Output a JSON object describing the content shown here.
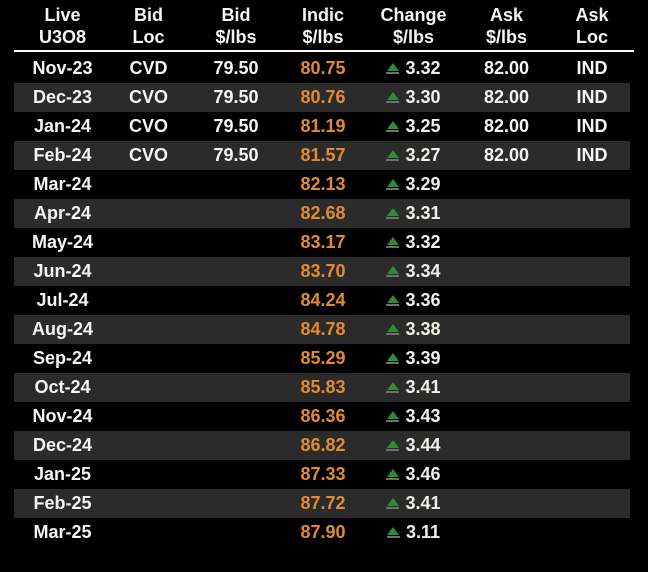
{
  "colors": {
    "background": "#000000",
    "row_alt": "#2B2B2B",
    "text": "#F5F5F5",
    "divider": "#FFFFFF",
    "indic": "#E08B33",
    "change_text": "#F1EFE7",
    "up_triangle_green": "#2E8B3C",
    "up_triangle_base": "#6F6F6F"
  },
  "icons": {
    "change_up": "up-triangle-icon"
  },
  "chart_data": {
    "type": "table",
    "title": "",
    "columns": [
      {
        "line1": "Live",
        "line2": "U3O8"
      },
      {
        "line1": "Bid",
        "line2": "Loc"
      },
      {
        "line1": "Bid",
        "line2": "$/lbs"
      },
      {
        "line1": "Indic",
        "line2": "$/lbs"
      },
      {
        "line1": "Change",
        "line2": "$/lbs"
      },
      {
        "line1": "Ask",
        "line2": "$/lbs"
      },
      {
        "line1": "Ask",
        "line2": "Loc"
      }
    ],
    "rows": [
      {
        "month": "Nov-23",
        "bid_loc": "CVD",
        "bid": "79.50",
        "indic": "80.75",
        "change": "3.32",
        "change_direction": "up",
        "ask": "82.00",
        "ask_loc": "IND"
      },
      {
        "month": "Dec-23",
        "bid_loc": "CVO",
        "bid": "79.50",
        "indic": "80.76",
        "change": "3.30",
        "change_direction": "up",
        "ask": "82.00",
        "ask_loc": "IND"
      },
      {
        "month": "Jan-24",
        "bid_loc": "CVO",
        "bid": "79.50",
        "indic": "81.19",
        "change": "3.25",
        "change_direction": "up",
        "ask": "82.00",
        "ask_loc": "IND"
      },
      {
        "month": "Feb-24",
        "bid_loc": "CVO",
        "bid": "79.50",
        "indic": "81.57",
        "change": "3.27",
        "change_direction": "up",
        "ask": "82.00",
        "ask_loc": "IND"
      },
      {
        "month": "Mar-24",
        "bid_loc": "",
        "bid": "",
        "indic": "82.13",
        "change": "3.29",
        "change_direction": "up",
        "ask": "",
        "ask_loc": ""
      },
      {
        "month": "Apr-24",
        "bid_loc": "",
        "bid": "",
        "indic": "82.68",
        "change": "3.31",
        "change_direction": "up",
        "ask": "",
        "ask_loc": ""
      },
      {
        "month": "May-24",
        "bid_loc": "",
        "bid": "",
        "indic": "83.17",
        "change": "3.32",
        "change_direction": "up",
        "ask": "",
        "ask_loc": ""
      },
      {
        "month": "Jun-24",
        "bid_loc": "",
        "bid": "",
        "indic": "83.70",
        "change": "3.34",
        "change_direction": "up",
        "ask": "",
        "ask_loc": ""
      },
      {
        "month": "Jul-24",
        "bid_loc": "",
        "bid": "",
        "indic": "84.24",
        "change": "3.36",
        "change_direction": "up",
        "ask": "",
        "ask_loc": ""
      },
      {
        "month": "Aug-24",
        "bid_loc": "",
        "bid": "",
        "indic": "84.78",
        "change": "3.38",
        "change_direction": "up",
        "ask": "",
        "ask_loc": ""
      },
      {
        "month": "Sep-24",
        "bid_loc": "",
        "bid": "",
        "indic": "85.29",
        "change": "3.39",
        "change_direction": "up",
        "ask": "",
        "ask_loc": ""
      },
      {
        "month": "Oct-24",
        "bid_loc": "",
        "bid": "",
        "indic": "85.83",
        "change": "3.41",
        "change_direction": "up",
        "ask": "",
        "ask_loc": ""
      },
      {
        "month": "Nov-24",
        "bid_loc": "",
        "bid": "",
        "indic": "86.36",
        "change": "3.43",
        "change_direction": "up",
        "ask": "",
        "ask_loc": ""
      },
      {
        "month": "Dec-24",
        "bid_loc": "",
        "bid": "",
        "indic": "86.82",
        "change": "3.44",
        "change_direction": "up",
        "ask": "",
        "ask_loc": ""
      },
      {
        "month": "Jan-25",
        "bid_loc": "",
        "bid": "",
        "indic": "87.33",
        "change": "3.46",
        "change_direction": "up",
        "ask": "",
        "ask_loc": ""
      },
      {
        "month": "Feb-25",
        "bid_loc": "",
        "bid": "",
        "indic": "87.72",
        "change": "3.41",
        "change_direction": "up",
        "ask": "",
        "ask_loc": ""
      },
      {
        "month": "Mar-25",
        "bid_loc": "",
        "bid": "",
        "indic": "87.90",
        "change": "3.11",
        "change_direction": "up",
        "ask": "",
        "ask_loc": ""
      }
    ]
  }
}
